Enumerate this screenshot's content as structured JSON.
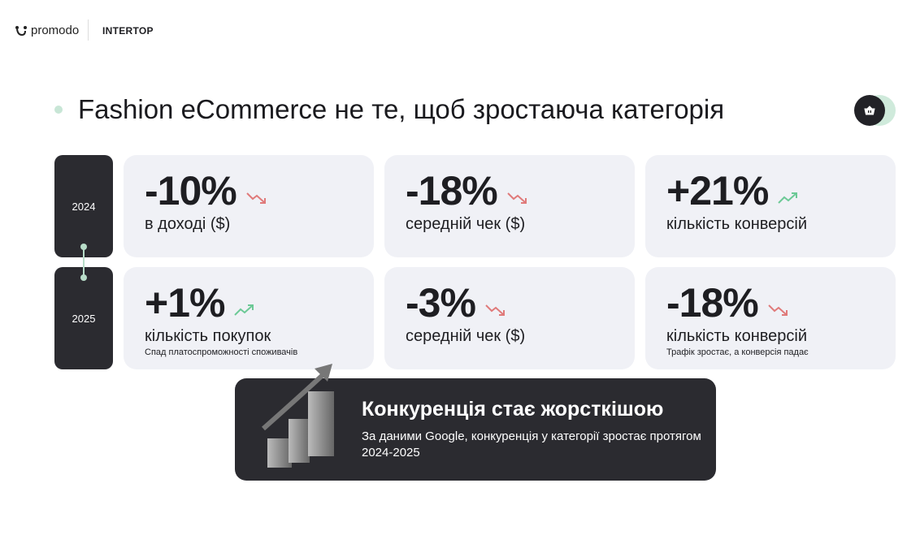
{
  "header": {
    "logo": "promodo",
    "client": "INTERTOP"
  },
  "title": "Fashion eCommerce не те, щоб зростаюча категорія",
  "badge_icon": "basket-icon",
  "colors": {
    "up": "#6cc996",
    "down": "#e07a7a",
    "dark": "#2b2b30",
    "card": "#f0f1f6"
  },
  "rows": [
    {
      "year": "2024",
      "cards": [
        {
          "value": "-10%",
          "trend": "down",
          "label": "в доході ($)",
          "note": ""
        },
        {
          "value": "-18%",
          "trend": "down",
          "label": "середній чек ($)",
          "note": ""
        },
        {
          "value": "+21%",
          "trend": "up",
          "label": "кількість конверсій",
          "note": ""
        }
      ]
    },
    {
      "year": "2025",
      "cards": [
        {
          "value": "+1%",
          "trend": "up",
          "label": "кількість покупок",
          "note": "Спад платоспроможності споживачів"
        },
        {
          "value": "-3%",
          "trend": "down",
          "label": "середній чек ($)",
          "note": ""
        },
        {
          "value": "-18%",
          "trend": "down",
          "label": "кількість конверсій",
          "note": "Трафік зростає, а конверсія падає"
        }
      ]
    }
  ],
  "callout": {
    "title": "Конкуренція стає жорсткішою",
    "text": "За даними Google, конкуренція у категорії зростає протягом 2024-2025",
    "icon": "growth-chart-icon"
  }
}
